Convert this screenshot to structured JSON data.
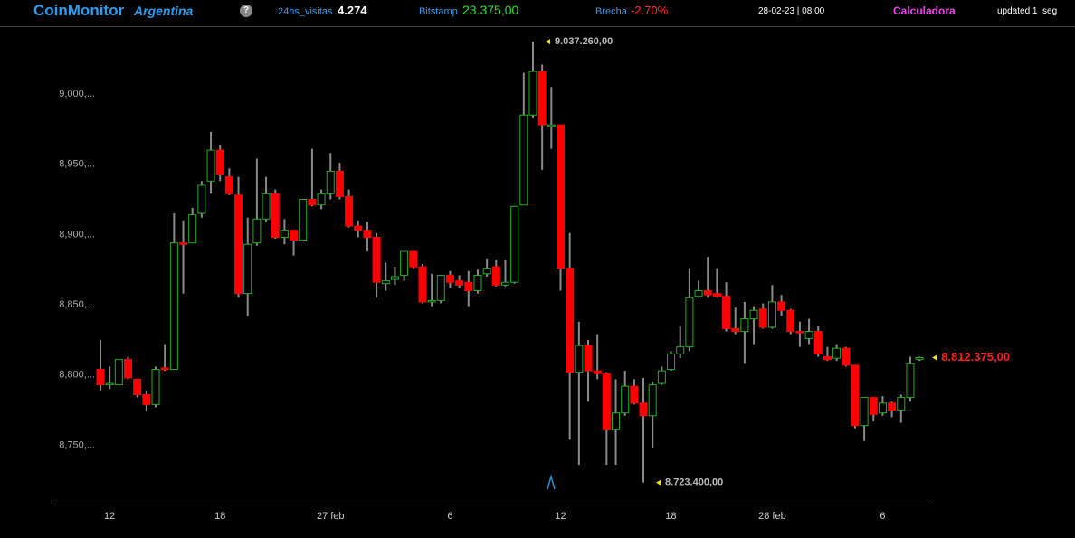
{
  "header": {
    "brand": "CoinMonitor",
    "country": "Argentina",
    "help": "?",
    "visits_label": "24hs_visitas",
    "visits": "4.274",
    "bitstamp_label": "Bitstamp",
    "bitstamp": "23.375,00",
    "gap_label": "Brecha",
    "gap": "-2.70%",
    "datetime": "28-02-23 | 08:00",
    "calculator": "Calculadora",
    "updated": "updated 1  seg"
  },
  "chart_data": {
    "type": "candlestick",
    "categories": [
      null,
      "12",
      null,
      null,
      null,
      null,
      null,
      null,
      null,
      null,
      null,
      null,
      null,
      "18",
      null,
      null,
      null,
      null,
      null,
      null,
      null,
      null,
      null,
      null,
      null,
      "27 feb",
      null,
      null,
      null,
      null,
      null,
      null,
      null,
      null,
      null,
      null,
      null,
      null,
      "6",
      null,
      null,
      null,
      null,
      null,
      null,
      null,
      null,
      null,
      null,
      null,
      "12",
      null,
      null,
      null,
      null,
      null,
      null,
      null,
      null,
      null,
      null,
      null,
      "18",
      null,
      null,
      null,
      null,
      null,
      null,
      null,
      null,
      null,
      null,
      "28 feb",
      null,
      null,
      null,
      null,
      null,
      null,
      null,
      null,
      null,
      null,
      null,
      "6",
      null,
      null,
      null,
      null
    ],
    "open": [
      8804000,
      8793000,
      8793000,
      8811000,
      8797000,
      8786000,
      8779000,
      8805000,
      8804000,
      8894000,
      8894000,
      8915000,
      8938000,
      8960000,
      8941000,
      8928000,
      8858000,
      8894000,
      8911000,
      8929000,
      8898000,
      8903000,
      8896000,
      8925000,
      8921000,
      8929000,
      8945000,
      8927000,
      8906000,
      8903000,
      8898000,
      8865000,
      8868000,
      8871000,
      8888000,
      8877000,
      8852000,
      8853000,
      8871000,
      8867000,
      8866000,
      8860000,
      8872000,
      8877000,
      8864000,
      8866000,
      8921000,
      8985000,
      9016000,
      8977000,
      8978000,
      8876000,
      8802000,
      8821000,
      8803000,
      8801000,
      8761000,
      8773000,
      8792000,
      8780000,
      8771000,
      8794000,
      8804000,
      8815000,
      8820000,
      8856000,
      8860000,
      8858000,
      8856000,
      8833000,
      8831000,
      8840000,
      8847000,
      8834000,
      8852000,
      8846000,
      8831000,
      8826000,
      8831000,
      8813000,
      8812000,
      8819000,
      8807000,
      8764000,
      8784000,
      8773000,
      8780000,
      8775000,
      8784000,
      8811000
    ],
    "high": [
      8825000,
      8806000,
      8811000,
      8813000,
      8797000,
      8789000,
      8806000,
      8822000,
      8915000,
      8910000,
      8919000,
      8938000,
      8973000,
      8964000,
      8947000,
      8941000,
      8912000,
      8954000,
      8941000,
      8932000,
      8911000,
      8903000,
      8925000,
      8961000,
      8932000,
      8958000,
      8951000,
      8932000,
      8910000,
      8909000,
      8901000,
      8880000,
      8877000,
      8888000,
      8888000,
      8879000,
      8872000,
      8871000,
      8874000,
      8871000,
      8874000,
      8875000,
      8883000,
      8882000,
      8882000,
      8920000,
      9015000,
      9037260,
      9021000,
      9005000,
      8978000,
      8901000,
      8838000,
      8825000,
      8829000,
      8802000,
      8797000,
      8803000,
      8797000,
      8798000,
      8795000,
      8806000,
      8817000,
      8835000,
      8876000,
      8867000,
      8884000,
      8876000,
      8866000,
      8848000,
      8852000,
      8849000,
      8851000,
      8864000,
      8857000,
      8847000,
      8838000,
      8840000,
      8835000,
      8820000,
      8822000,
      8820000,
      8807000,
      8784000,
      8784000,
      8785000,
      8781000,
      8786000,
      8813000,
      8813000
    ],
    "low": [
      8789000,
      8790000,
      8793000,
      8797000,
      8784000,
      8774000,
      8777000,
      8803000,
      8804000,
      8858000,
      8894000,
      8912000,
      8929000,
      8938000,
      8928000,
      8855000,
      8842000,
      8892000,
      8909000,
      8897000,
      8893000,
      8885000,
      8896000,
      8920000,
      8918000,
      8925000,
      8925000,
      8905000,
      8898000,
      8888000,
      8855000,
      8860000,
      8864000,
      8867000,
      8876000,
      8851000,
      8849000,
      8851000,
      8862000,
      8862000,
      8849000,
      8858000,
      8870000,
      8863000,
      8863000,
      8865000,
      8921000,
      8983000,
      8946000,
      8961000,
      8860000,
      8754000,
      8736000,
      8781000,
      8797000,
      8736000,
      8736000,
      8771000,
      8779000,
      8723400,
      8748000,
      8793000,
      8803000,
      8812000,
      8817000,
      8855000,
      8855000,
      8855000,
      8831000,
      8829000,
      8808000,
      8822000,
      8833000,
      8833000,
      8842000,
      8829000,
      8820000,
      8822000,
      8813000,
      8810000,
      8810000,
      8806000,
      8762000,
      8753000,
      8767000,
      8771000,
      8770000,
      8766000,
      8781000,
      8810000
    ],
    "close": [
      8793000,
      8794000,
      8811000,
      8798000,
      8786000,
      8779000,
      8804000,
      8804000,
      8894000,
      8893000,
      8914000,
      8935000,
      8960000,
      8943000,
      8929000,
      8858000,
      8893000,
      8911000,
      8929000,
      8898000,
      8903000,
      8896000,
      8925000,
      8921000,
      8929000,
      8945000,
      8927000,
      8906000,
      8903000,
      8898000,
      8866000,
      8867000,
      8870000,
      8888000,
      8877000,
      8852000,
      8853000,
      8871000,
      8866000,
      8864000,
      8860000,
      8871000,
      8876000,
      8864000,
      8866000,
      8920000,
      8985000,
      9016000,
      8978000,
      8978000,
      8876000,
      8802000,
      8821000,
      8803000,
      8801000,
      8761000,
      8773000,
      8792000,
      8780000,
      8771000,
      8793000,
      8803000,
      8815000,
      8820000,
      8855000,
      8860000,
      8857000,
      8856000,
      8833000,
      8831000,
      8840000,
      8846000,
      8834000,
      8852000,
      8846000,
      8831000,
      8830000,
      8831000,
      8815000,
      8811000,
      8819000,
      8807000,
      8764000,
      8784000,
      8772000,
      8780000,
      8775000,
      8784000,
      8808000,
      8812375
    ],
    "ylim": [
      8707800,
      9047600
    ],
    "yticks": [
      {
        "value": 8750000,
        "label": "8,750,..."
      },
      {
        "value": 8800000,
        "label": "8,800,..."
      },
      {
        "value": 8850000,
        "label": "8,850,..."
      },
      {
        "value": 8900000,
        "label": "8,900,..."
      },
      {
        "value": 8950000,
        "label": "8,950,..."
      },
      {
        "value": 9000000,
        "label": "9,000,..."
      }
    ],
    "up_color": "#22b022",
    "down_color": "#ff0000",
    "wick_color": "#8a8a8a",
    "annotations": [
      {
        "value": 9037260,
        "label": "9.037.260,00",
        "color": "#bbbbbb"
      },
      {
        "value": 8723400,
        "label": "8.723.400,00",
        "color": "#bbbbbb"
      },
      {
        "value": 8812375,
        "label": "8.812.375,00",
        "color": "#ff2020"
      }
    ]
  }
}
